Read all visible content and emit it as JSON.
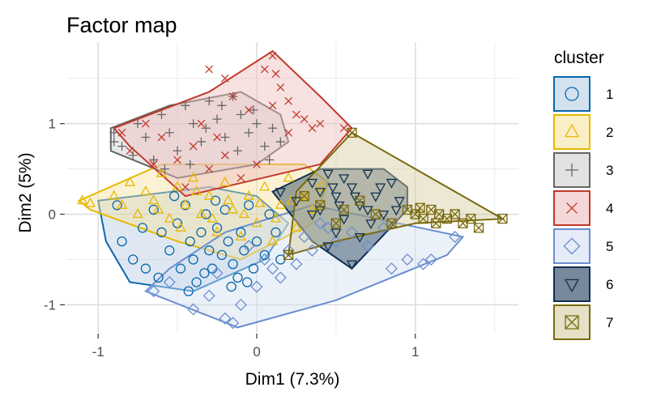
{
  "chart_data": {
    "type": "scatter",
    "title": "Factor map",
    "xlabel": "Dim1 (7.3%)",
    "ylabel": "Dim2 (5%)",
    "xlim": [
      -1.2,
      1.65
    ],
    "ylim": [
      -1.3,
      1.9
    ],
    "x_ticks": [
      -1,
      0,
      1
    ],
    "x_tick_labels": [
      "-1",
      "0",
      "1"
    ],
    "y_ticks": [
      -1,
      0,
      1
    ],
    "y_tick_labels": [
      "-1",
      "0",
      "1"
    ],
    "grid": true,
    "legend": {
      "title": "cluster",
      "position": "right"
    },
    "series": [
      {
        "name": "1",
        "color": "#0868ac",
        "fill": "#b8cde3",
        "symbol": "circle",
        "hull": [
          [
            -1.0,
            0.15
          ],
          [
            -0.3,
            0.3
          ],
          [
            0.0,
            0.2
          ],
          [
            0.2,
            -0.1
          ],
          [
            0.05,
            -0.5
          ],
          [
            -0.4,
            -0.85
          ],
          [
            -0.8,
            -0.75
          ],
          [
            -0.95,
            -0.3
          ]
        ],
        "points": [
          [
            -0.88,
            0.1
          ],
          [
            -0.85,
            -0.3
          ],
          [
            -0.78,
            -0.5
          ],
          [
            -0.7,
            -0.6
          ],
          [
            -0.65,
            0.05
          ],
          [
            -0.6,
            -0.2
          ],
          [
            -0.55,
            -0.4
          ],
          [
            -0.5,
            -0.1
          ],
          [
            -0.48,
            -0.6
          ],
          [
            -0.45,
            0.1
          ],
          [
            -0.42,
            -0.3
          ],
          [
            -0.4,
            -0.5
          ],
          [
            -0.38,
            -0.75
          ],
          [
            -0.35,
            -0.2
          ],
          [
            -0.32,
            0.0
          ],
          [
            -0.3,
            -0.4
          ],
          [
            -0.28,
            -0.6
          ],
          [
            -0.25,
            -0.15
          ],
          [
            -0.22,
            -0.45
          ],
          [
            -0.2,
            0.05
          ],
          [
            -0.18,
            -0.3
          ],
          [
            -0.15,
            -0.55
          ],
          [
            -0.12,
            -0.7
          ],
          [
            -0.1,
            -0.2
          ],
          [
            -0.08,
            -0.4
          ],
          [
            -0.05,
            0.1
          ],
          [
            -0.02,
            -0.6
          ],
          [
            0.0,
            -0.3
          ],
          [
            0.05,
            -0.45
          ],
          [
            0.08,
            0.0
          ],
          [
            0.12,
            -0.2
          ],
          [
            0.15,
            -0.5
          ],
          [
            -0.72,
            -0.15
          ],
          [
            -0.62,
            -0.7
          ],
          [
            -0.52,
            0.2
          ],
          [
            -0.43,
            -0.85
          ],
          [
            -0.33,
            -0.65
          ],
          [
            -0.26,
            0.15
          ],
          [
            -0.16,
            -0.8
          ],
          [
            -0.06,
            -0.75
          ]
        ]
      },
      {
        "name": "2",
        "color": "#e7b800",
        "fill": "#f6e2a0",
        "symbol": "triangle",
        "hull": [
          [
            -1.12,
            0.15
          ],
          [
            -0.6,
            0.55
          ],
          [
            0.3,
            0.55
          ],
          [
            0.45,
            0.35
          ],
          [
            0.35,
            -0.1
          ],
          [
            -0.1,
            -0.5
          ],
          [
            -0.5,
            -0.3
          ],
          [
            -1.05,
            0.05
          ]
        ],
        "points": [
          [
            -1.1,
            0.15
          ],
          [
            -1.05,
            0.12
          ],
          [
            -0.9,
            0.2
          ],
          [
            -0.85,
            0.1
          ],
          [
            -0.8,
            0.35
          ],
          [
            -0.75,
            0.0
          ],
          [
            -0.7,
            0.25
          ],
          [
            -0.65,
            0.15
          ],
          [
            -0.6,
            0.45
          ],
          [
            -0.55,
            -0.05
          ],
          [
            -0.5,
            0.3
          ],
          [
            -0.45,
            0.1
          ],
          [
            -0.4,
            0.4
          ],
          [
            -0.35,
            0.0
          ],
          [
            -0.3,
            0.2
          ],
          [
            -0.25,
            -0.2
          ],
          [
            -0.2,
            0.35
          ],
          [
            -0.15,
            0.05
          ],
          [
            -0.1,
            -0.25
          ],
          [
            -0.05,
            0.2
          ],
          [
            0.0,
            -0.1
          ],
          [
            0.05,
            0.3
          ],
          [
            0.1,
            -0.3
          ],
          [
            0.15,
            0.1
          ],
          [
            0.2,
            0.4
          ],
          [
            0.25,
            -0.15
          ],
          [
            0.3,
            0.2
          ],
          [
            0.35,
            0.05
          ],
          [
            0.4,
            0.3
          ],
          [
            -0.62,
            0.05
          ],
          [
            -0.48,
            -0.15
          ],
          [
            -0.38,
            0.25
          ],
          [
            -0.28,
            -0.05
          ],
          [
            -0.18,
            0.15
          ],
          [
            -0.08,
            0.0
          ],
          [
            0.02,
            0.12
          ],
          [
            0.12,
            -0.05
          ],
          [
            0.22,
            0.15
          ]
        ]
      },
      {
        "name": "3",
        "color": "#666666",
        "fill": "#cfcfcf",
        "symbol": "plus",
        "hull": [
          [
            -0.92,
            0.95
          ],
          [
            -0.55,
            1.2
          ],
          [
            -0.1,
            1.35
          ],
          [
            0.15,
            1.1
          ],
          [
            0.2,
            0.8
          ],
          [
            0.0,
            0.55
          ],
          [
            -0.5,
            0.4
          ],
          [
            -0.92,
            0.7
          ]
        ],
        "points": [
          [
            -0.9,
            0.8
          ],
          [
            -0.9,
            0.9
          ],
          [
            -0.85,
            0.75
          ],
          [
            -0.75,
            1.0
          ],
          [
            -0.7,
            0.85
          ],
          [
            -0.65,
            0.6
          ],
          [
            -0.6,
            1.1
          ],
          [
            -0.55,
            0.9
          ],
          [
            -0.5,
            0.7
          ],
          [
            -0.45,
            1.2
          ],
          [
            -0.4,
            1.0
          ],
          [
            -0.35,
            0.8
          ],
          [
            -0.3,
            1.25
          ],
          [
            -0.25,
            1.05
          ],
          [
            -0.2,
            0.85
          ],
          [
            -0.15,
            1.3
          ],
          [
            -0.1,
            1.1
          ],
          [
            -0.05,
            0.9
          ],
          [
            0.0,
            1.0
          ],
          [
            0.05,
            0.75
          ],
          [
            0.1,
            0.95
          ],
          [
            0.15,
            0.8
          ],
          [
            -0.78,
            0.65
          ],
          [
            -0.58,
            0.5
          ],
          [
            -0.42,
            0.55
          ],
          [
            -0.32,
            0.95
          ],
          [
            -0.22,
            1.2
          ],
          [
            -0.12,
            0.7
          ],
          [
            -0.02,
            1.15
          ],
          [
            0.08,
            0.6
          ]
        ]
      },
      {
        "name": "4",
        "color": "#c0392b",
        "fill": "#eebcbc",
        "symbol": "x",
        "hull": [
          [
            -0.9,
            0.95
          ],
          [
            -0.3,
            1.35
          ],
          [
            0.1,
            1.8
          ],
          [
            0.4,
            1.3
          ],
          [
            0.6,
            0.95
          ],
          [
            0.4,
            0.55
          ],
          [
            -0.45,
            0.2
          ],
          [
            -0.8,
            0.75
          ]
        ],
        "points": [
          [
            -0.85,
            0.9
          ],
          [
            -0.8,
            0.7
          ],
          [
            -0.7,
            1.0
          ],
          [
            -0.6,
            0.85
          ],
          [
            -0.5,
            0.6
          ],
          [
            -0.4,
            0.75
          ],
          [
            -0.3,
            0.5
          ],
          [
            -0.2,
            0.65
          ],
          [
            -0.1,
            0.4
          ],
          [
            0.0,
            0.55
          ],
          [
            0.05,
            1.6
          ],
          [
            0.1,
            1.75
          ],
          [
            0.12,
            1.55
          ],
          [
            0.15,
            1.4
          ],
          [
            0.2,
            1.25
          ],
          [
            0.25,
            1.1
          ],
          [
            0.3,
            1.05
          ],
          [
            0.35,
            0.95
          ],
          [
            0.4,
            1.0
          ],
          [
            0.55,
            0.95
          ],
          [
            -0.3,
            1.6
          ],
          [
            -0.2,
            1.5
          ],
          [
            -0.15,
            1.3
          ],
          [
            -0.05,
            1.15
          ],
          [
            -0.65,
            0.55
          ],
          [
            -0.45,
            0.3
          ],
          [
            -0.35,
            1.0
          ],
          [
            -0.25,
            0.85
          ],
          [
            0.1,
            1.2
          ],
          [
            0.2,
            0.9
          ]
        ]
      },
      {
        "name": "5",
        "color": "#6b8ecf",
        "fill": "#d3dff2",
        "symbol": "diamond",
        "hull": [
          [
            -0.7,
            -0.85
          ],
          [
            -0.12,
            -1.25
          ],
          [
            0.5,
            -0.95
          ],
          [
            1.2,
            -0.45
          ],
          [
            1.3,
            -0.25
          ],
          [
            0.35,
            0.1
          ],
          [
            -0.2,
            -0.2
          ],
          [
            -0.55,
            -0.6
          ]
        ],
        "points": [
          [
            -0.65,
            -0.85
          ],
          [
            -0.55,
            -0.75
          ],
          [
            -0.4,
            -1.05
          ],
          [
            -0.3,
            -0.9
          ],
          [
            -0.2,
            -1.15
          ],
          [
            -0.15,
            -1.2
          ],
          [
            -0.1,
            -1.0
          ],
          [
            0.0,
            -0.8
          ],
          [
            0.1,
            -0.6
          ],
          [
            0.2,
            -0.4
          ],
          [
            0.3,
            -0.25
          ],
          [
            0.4,
            -0.1
          ],
          [
            0.5,
            -0.3
          ],
          [
            0.6,
            -0.2
          ],
          [
            0.7,
            -0.35
          ],
          [
            0.8,
            -0.15
          ],
          [
            0.85,
            -0.6
          ],
          [
            0.95,
            -0.5
          ],
          [
            1.05,
            -0.55
          ],
          [
            1.1,
            -0.5
          ],
          [
            1.25,
            -0.25
          ],
          [
            0.15,
            -0.7
          ],
          [
            0.05,
            -0.5
          ],
          [
            -0.05,
            -0.35
          ],
          [
            0.25,
            -0.55
          ],
          [
            0.35,
            -0.4
          ],
          [
            -0.25,
            -0.65
          ],
          [
            0.45,
            -0.15
          ]
        ]
      },
      {
        "name": "6",
        "color": "#0e2f4f",
        "fill": "#1d3b57",
        "symbol": "triangle-down",
        "hull": [
          [
            0.1,
            0.25
          ],
          [
            0.4,
            0.5
          ],
          [
            0.8,
            0.5
          ],
          [
            0.95,
            0.3
          ],
          [
            0.95,
            0.05
          ],
          [
            0.6,
            -0.6
          ],
          [
            0.35,
            -0.3
          ],
          [
            0.1,
            0.25
          ]
        ],
        "points": [
          [
            0.15,
            0.25
          ],
          [
            0.25,
            0.15
          ],
          [
            0.35,
            0.35
          ],
          [
            0.4,
            0.05
          ],
          [
            0.45,
            0.45
          ],
          [
            0.5,
            0.2
          ],
          [
            0.55,
            -0.05
          ],
          [
            0.6,
            0.3
          ],
          [
            0.65,
            0.1
          ],
          [
            0.7,
            0.45
          ],
          [
            0.75,
            0.2
          ],
          [
            0.8,
            0.0
          ],
          [
            0.85,
            0.35
          ],
          [
            0.9,
            0.15
          ],
          [
            0.6,
            -0.55
          ],
          [
            0.5,
            -0.2
          ],
          [
            0.45,
            -0.35
          ],
          [
            0.4,
            0.25
          ],
          [
            0.55,
            0.4
          ],
          [
            0.65,
            -0.25
          ],
          [
            0.7,
            0.05
          ],
          [
            0.78,
            0.3
          ],
          [
            0.88,
            0.05
          ],
          [
            0.52,
            0.1
          ],
          [
            0.62,
            0.2
          ],
          [
            0.72,
            -0.1
          ],
          [
            0.35,
            0.0
          ],
          [
            0.48,
            0.3
          ]
        ]
      },
      {
        "name": "7",
        "color": "#7a6a0e",
        "fill": "#d4cba0",
        "symbol": "square-x",
        "hull": [
          [
            0.25,
            0.25
          ],
          [
            0.6,
            0.9
          ],
          [
            1.55,
            -0.05
          ],
          [
            1.0,
            -0.1
          ],
          [
            0.5,
            -0.3
          ],
          [
            0.2,
            -0.45
          ],
          [
            0.25,
            0.25
          ]
        ],
        "points": [
          [
            0.6,
            0.9
          ],
          [
            0.3,
            0.2
          ],
          [
            0.4,
            0.1
          ],
          [
            0.5,
            -0.1
          ],
          [
            0.2,
            -0.45
          ],
          [
            0.55,
            0.05
          ],
          [
            0.65,
            0.15
          ],
          [
            0.75,
            0.0
          ],
          [
            0.85,
            -0.1
          ],
          [
            0.95,
            0.05
          ],
          [
            1.0,
            0.0
          ],
          [
            1.05,
            -0.05
          ],
          [
            1.1,
            0.05
          ],
          [
            1.15,
            0.0
          ],
          [
            1.2,
            -0.05
          ],
          [
            1.25,
            0.0
          ],
          [
            1.3,
            -0.1
          ],
          [
            1.35,
            -0.05
          ],
          [
            1.4,
            -0.15
          ],
          [
            1.55,
            -0.05
          ],
          [
            1.03,
            0.07
          ],
          [
            1.13,
            -0.1
          ]
        ]
      }
    ]
  }
}
